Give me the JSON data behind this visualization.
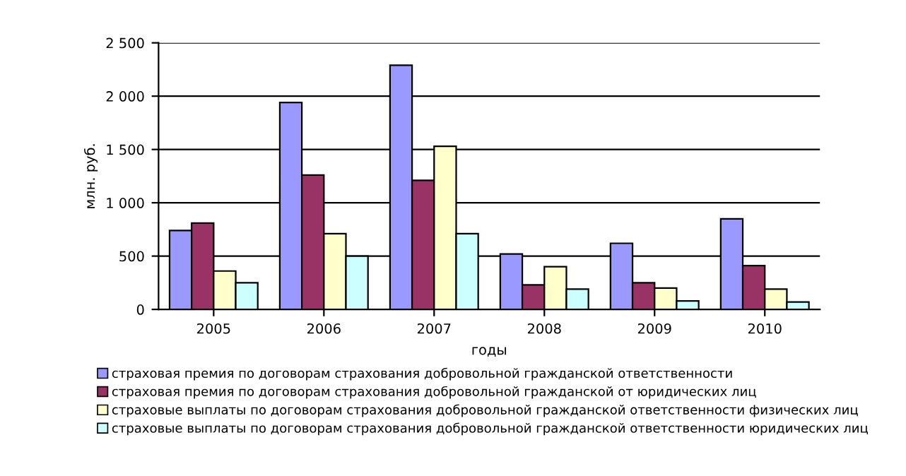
{
  "chart_data": {
    "type": "bar",
    "xlabel": "годы",
    "ylabel": "млн. руб.",
    "categories": [
      "2005",
      "2006",
      "2007",
      "2008",
      "2009",
      "2010"
    ],
    "series": [
      {
        "name": "страховая премия по договорам страхования добровольной гражданской ответственности",
        "color": "#9999ff",
        "values": [
          740,
          1940,
          2290,
          520,
          620,
          850
        ]
      },
      {
        "name": "страховая премия по договорам страхования добровольной гражданской от юридических лиц",
        "color": "#993366",
        "values": [
          810,
          1260,
          1210,
          230,
          250,
          410
        ]
      },
      {
        "name": "страховые выплаты по договорам страхования добровольной гражданской ответственности физических лиц",
        "color": "#ffffcc",
        "values": [
          360,
          710,
          1530,
          400,
          200,
          190
        ]
      },
      {
        "name": "страховые выплаты по договорам страхования добровольной гражданской ответственности юридических лиц",
        "color": "#ccffff",
        "values": [
          250,
          500,
          710,
          190,
          80,
          70
        ]
      }
    ],
    "ylim": [
      0,
      2500
    ],
    "yticks": [
      0,
      {
        "value": 500,
        "label": "500"
      },
      {
        "value": 1000,
        "label": "1 000"
      },
      {
        "value": 1500,
        "label": "1 500"
      },
      {
        "value": 2000,
        "label": "2 000"
      },
      {
        "value": 2500,
        "label": "2 500"
      }
    ],
    "grid": "y",
    "legend": "bottom"
  }
}
